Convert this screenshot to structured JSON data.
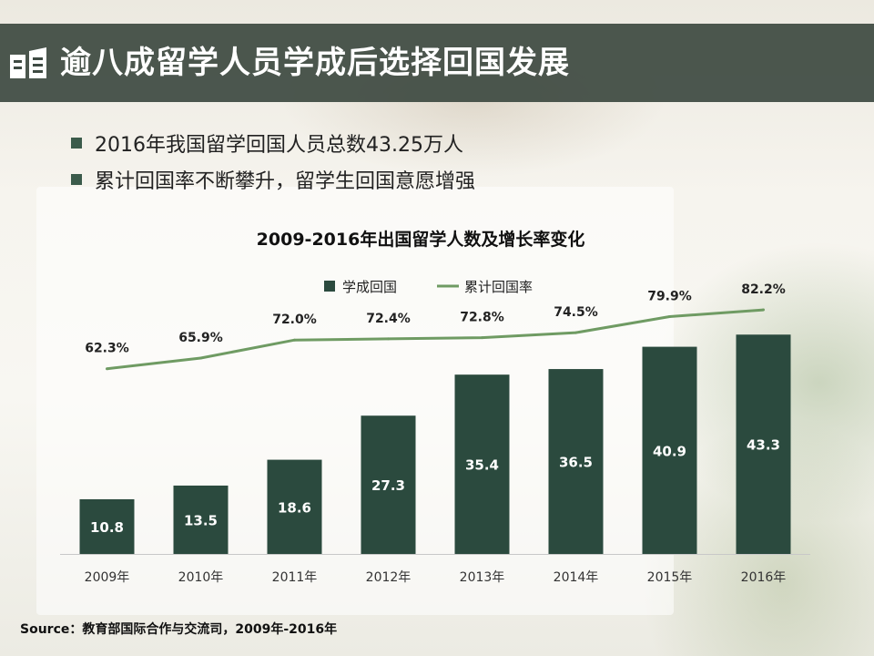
{
  "header": {
    "title": "逾八成留学人员学成后选择回国发展",
    "icon": "book-icon"
  },
  "bullets": [
    "2016年我国留学回国人员总数43.25万人",
    "累计回国率不断攀升，留学生回国意愿增强"
  ],
  "colors": {
    "title_bar": "#3e4a42",
    "bar": "#2b4a3e",
    "line": "#6f9b63",
    "bullet": "#3b5b4b"
  },
  "chart_data": {
    "type": "bar",
    "title": "2009-2016年出国留学人数及增长率变化",
    "categories": [
      "2009年",
      "2010年",
      "2011年",
      "2012年",
      "2013年",
      "2014年",
      "2015年",
      "2016年"
    ],
    "series": [
      {
        "name": "学成回国",
        "type": "bar",
        "values": [
          10.8,
          13.5,
          18.6,
          27.3,
          35.4,
          36.5,
          40.9,
          43.3
        ],
        "labels": [
          "10.8",
          "13.5",
          "18.6",
          "27.3",
          "35.4",
          "36.5",
          "40.9",
          "43.3"
        ]
      },
      {
        "name": "累计回国率",
        "type": "line",
        "values": [
          62.3,
          65.9,
          72.0,
          72.4,
          72.8,
          74.5,
          79.9,
          82.2
        ],
        "labels": [
          "62.3%",
          "65.9%",
          "72.0%",
          "72.4%",
          "72.8%",
          "74.5%",
          "79.9%",
          "82.2%"
        ]
      }
    ],
    "legend_position": "top-center",
    "grid": false
  },
  "source": "Source：教育部国际合作与交流司，2009年-2016年"
}
